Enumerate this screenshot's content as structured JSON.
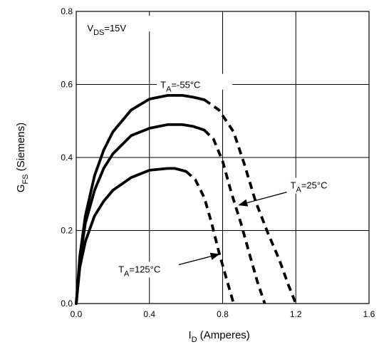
{
  "chart_data": {
    "type": "line",
    "xlabel": {
      "main": "I",
      "sub": "D",
      "rest": " (Amperes)"
    },
    "ylabel": {
      "main": "G",
      "sub": "FS",
      "rest": " (Siemens)"
    },
    "xlim": [
      0.0,
      1.6
    ],
    "ylim": [
      0.0,
      0.8
    ],
    "xticks": [
      "0.0",
      "0.4",
      "0.8",
      "1.2",
      "1.6"
    ],
    "yticks": [
      "0.0",
      "0.2",
      "0.4",
      "0.6",
      "0.8"
    ],
    "grid": true,
    "condition": {
      "main": "V",
      "sub": "DS",
      "rest": "=15V"
    },
    "series": [
      {
        "name": {
          "main": "T",
          "sub": "A",
          "rest": "=-55°C"
        },
        "solid": [
          [
            0.0,
            0.0
          ],
          [
            0.02,
            0.13
          ],
          [
            0.05,
            0.24
          ],
          [
            0.1,
            0.35
          ],
          [
            0.15,
            0.42
          ],
          [
            0.2,
            0.47
          ],
          [
            0.3,
            0.53
          ],
          [
            0.4,
            0.56
          ],
          [
            0.5,
            0.57
          ],
          [
            0.58,
            0.57
          ],
          [
            0.64,
            0.565
          ],
          [
            0.7,
            0.558
          ]
        ],
        "dashed": [
          [
            0.7,
            0.558
          ],
          [
            0.78,
            0.53
          ],
          [
            0.86,
            0.47
          ],
          [
            0.92,
            0.38
          ],
          [
            0.98,
            0.28
          ],
          [
            1.05,
            0.19
          ],
          [
            1.11,
            0.12
          ],
          [
            1.16,
            0.05
          ],
          [
            1.2,
            0.0
          ]
        ]
      },
      {
        "name": {
          "main": "T",
          "sub": "A",
          "rest": "=25°C"
        },
        "solid": [
          [
            0.0,
            0.0
          ],
          [
            0.02,
            0.12
          ],
          [
            0.05,
            0.22
          ],
          [
            0.1,
            0.31
          ],
          [
            0.15,
            0.37
          ],
          [
            0.2,
            0.41
          ],
          [
            0.3,
            0.46
          ],
          [
            0.4,
            0.48
          ],
          [
            0.5,
            0.49
          ],
          [
            0.58,
            0.49
          ],
          [
            0.64,
            0.485
          ],
          [
            0.7,
            0.475
          ]
        ],
        "dashed": [
          [
            0.7,
            0.475
          ],
          [
            0.75,
            0.45
          ],
          [
            0.8,
            0.39
          ],
          [
            0.85,
            0.3
          ],
          [
            0.9,
            0.22
          ],
          [
            0.95,
            0.13
          ],
          [
            0.99,
            0.06
          ],
          [
            1.03,
            0.0
          ]
        ]
      },
      {
        "name": {
          "main": "T",
          "sub": "A",
          "rest": "=125°C"
        },
        "solid": [
          [
            0.0,
            0.0
          ],
          [
            0.02,
            0.1
          ],
          [
            0.05,
            0.17
          ],
          [
            0.1,
            0.24
          ],
          [
            0.15,
            0.28
          ],
          [
            0.2,
            0.31
          ],
          [
            0.3,
            0.345
          ],
          [
            0.4,
            0.365
          ],
          [
            0.5,
            0.37
          ],
          [
            0.54,
            0.37
          ],
          [
            0.6,
            0.362
          ]
        ],
        "dashed": [
          [
            0.6,
            0.362
          ],
          [
            0.65,
            0.34
          ],
          [
            0.7,
            0.29
          ],
          [
            0.74,
            0.22
          ],
          [
            0.78,
            0.14
          ],
          [
            0.82,
            0.07
          ],
          [
            0.86,
            0.0
          ]
        ]
      }
    ],
    "annotations": [
      {
        "target_series": 1,
        "label_at": [
          1.17,
          0.315
        ],
        "label_anchor": "start",
        "arrow_from": [
          1.15,
          0.305
        ],
        "arrow_to": [
          0.89,
          0.27
        ]
      },
      {
        "target_series": 2,
        "label_at": [
          0.23,
          0.085
        ],
        "label_anchor": "start",
        "arrow_from": [
          0.55,
          0.105
        ],
        "arrow_to": [
          0.78,
          0.135
        ]
      }
    ]
  }
}
